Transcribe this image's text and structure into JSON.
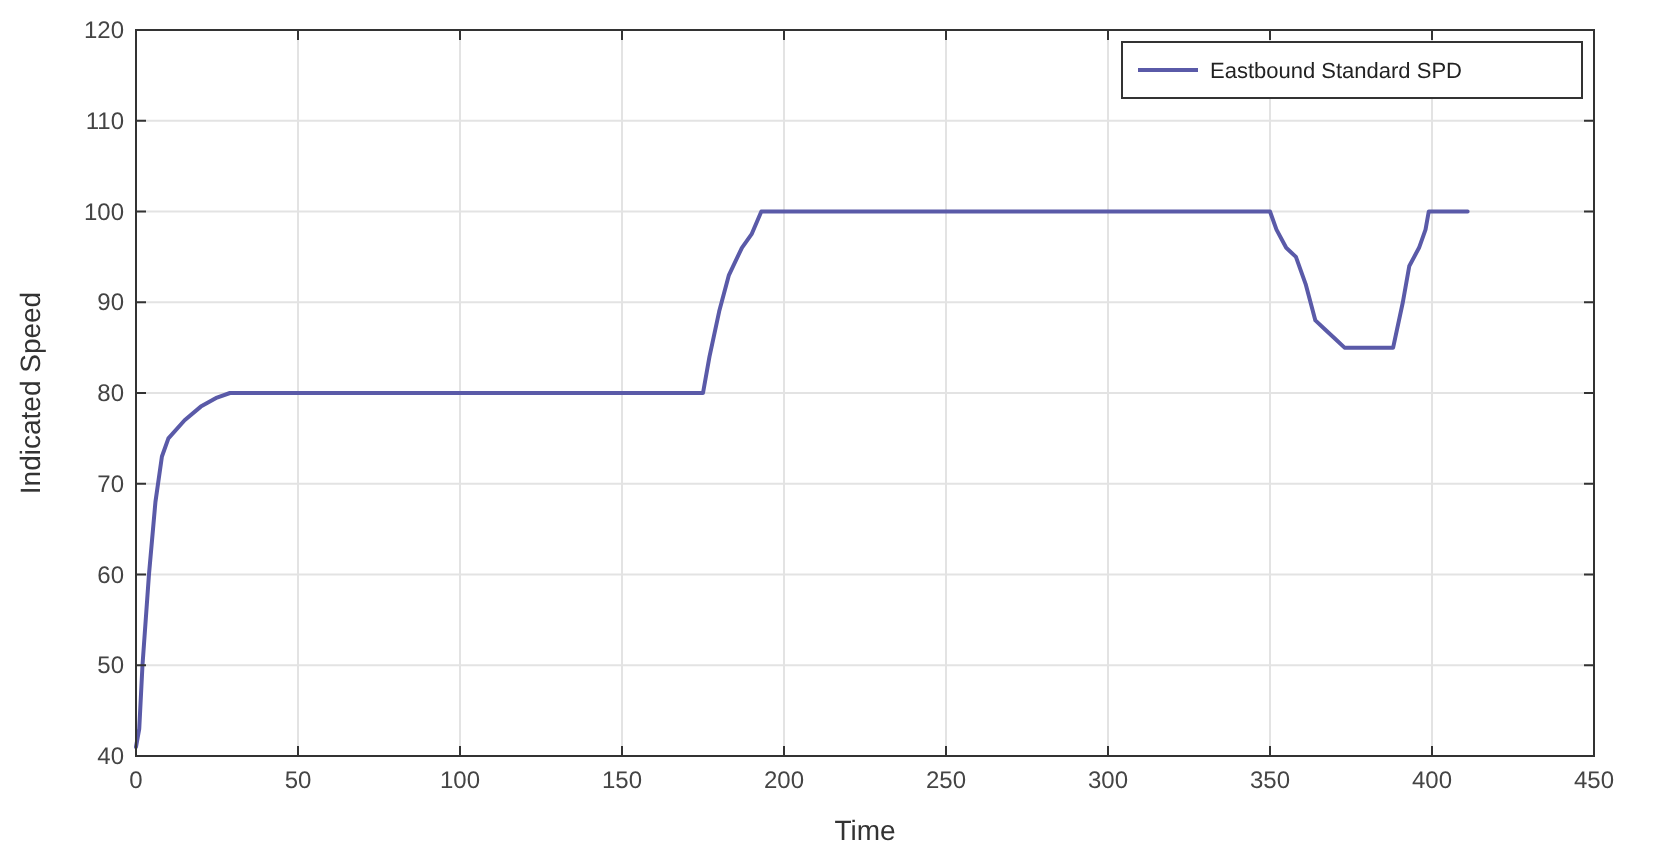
{
  "chart_data": {
    "type": "line",
    "xlabel": "Time",
    "ylabel": "Indicated Speed",
    "xlim": [
      0,
      450
    ],
    "ylim": [
      40,
      120
    ],
    "xticks": [
      0,
      50,
      100,
      150,
      200,
      250,
      300,
      350,
      400,
      450
    ],
    "yticks": [
      40,
      50,
      60,
      70,
      80,
      90,
      100,
      110,
      120
    ],
    "grid": true,
    "legend": "top right",
    "line_style": "solid",
    "series": [
      {
        "name": "Eastbound Standard SPD",
        "color": "#5a5aa8",
        "x": [
          0,
          1,
          2,
          4,
          6,
          8,
          10,
          15,
          20,
          25,
          29,
          175,
          177,
          180,
          183,
          187,
          190,
          193,
          350,
          352,
          355,
          358,
          361,
          364,
          367,
          370,
          373,
          388,
          391,
          393,
          396,
          398,
          399,
          411
        ],
        "values": [
          41,
          43,
          50,
          60,
          68,
          73,
          75,
          77,
          78.5,
          79.5,
          80,
          80,
          84,
          89,
          93,
          96,
          97.5,
          100,
          100,
          98,
          96,
          95,
          92,
          88,
          87,
          86,
          85,
          85,
          90,
          94,
          96,
          98,
          100,
          100
        ]
      }
    ]
  }
}
